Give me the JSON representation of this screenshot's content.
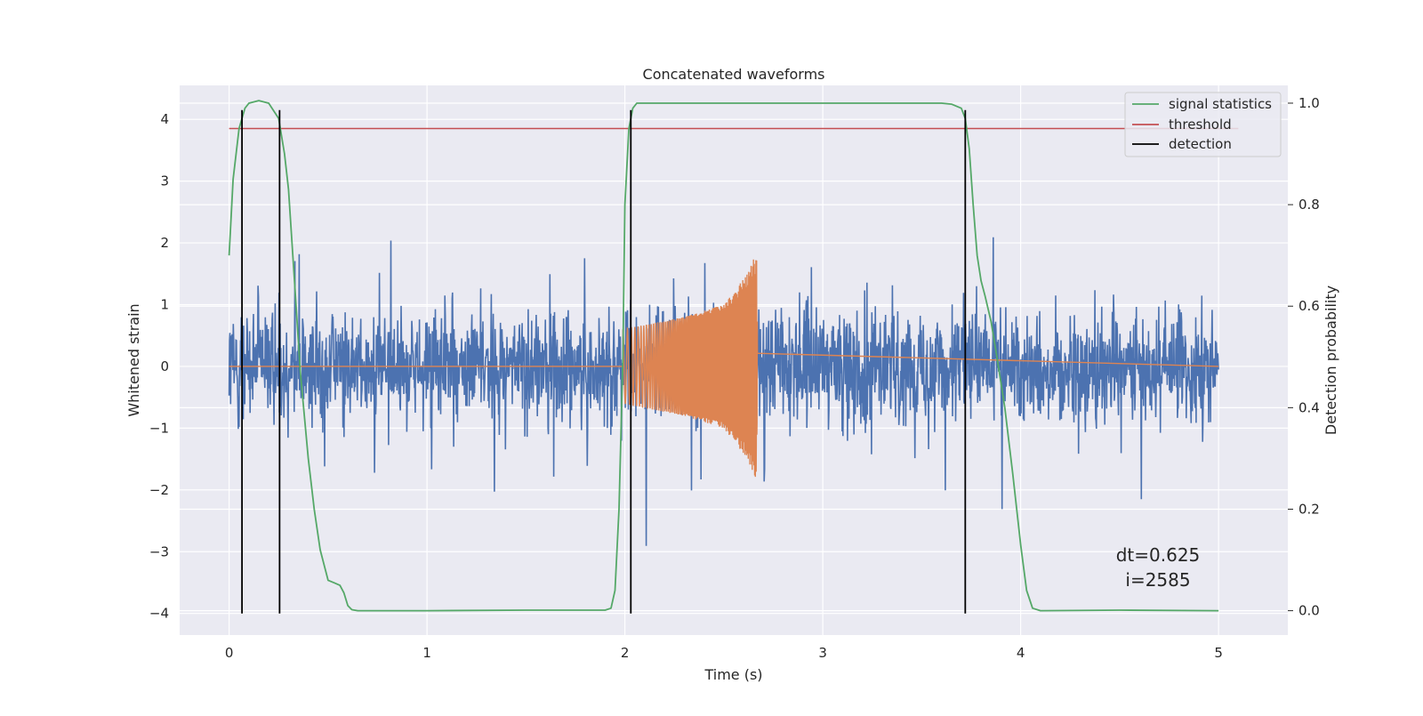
{
  "chart_data": {
    "type": "line",
    "title": "Concatenated waveforms",
    "xlabel": "Time (s)",
    "ylabel": "Whitened strain",
    "y2label": "Detection probability",
    "xlim": [
      -0.25,
      5.35
    ],
    "ylim": [
      -4.35,
      4.55
    ],
    "y2lim": [
      -0.048,
      1.035
    ],
    "x_ticks": [
      0,
      1,
      2,
      3,
      4,
      5
    ],
    "y_ticks": [
      -4,
      -3,
      -2,
      -1,
      0,
      1,
      2,
      3,
      4
    ],
    "y2_ticks": [
      0.0,
      0.2,
      0.4,
      0.6,
      0.8,
      1.0
    ],
    "x_tick_labels": [
      "0",
      "1",
      "2",
      "3",
      "4",
      "5"
    ],
    "y_tick_labels": [
      "−4",
      "−3",
      "−2",
      "−1",
      "0",
      "1",
      "2",
      "3",
      "4"
    ],
    "y2_tick_labels": [
      "0.0",
      "0.2",
      "0.4",
      "0.6",
      "0.8",
      "1.0"
    ],
    "grid": true,
    "legend_position": "top-right",
    "colors": {
      "background": "#eaeaf2",
      "grid": "#ffffff",
      "strain": "#4c72b0",
      "template": "#dd8452",
      "signal_statistics": "#55a868",
      "threshold": "#c44e52",
      "detection": "#000000"
    },
    "series": [
      {
        "name": "",
        "axis": "left",
        "kind": "noise",
        "x_range": [
          0,
          5
        ],
        "envelope": [
          [
            0.0,
            2.8
          ],
          [
            0.5,
            2.7
          ],
          [
            1.0,
            2.8
          ],
          [
            1.5,
            2.9
          ],
          [
            2.0,
            2.8
          ],
          [
            2.5,
            3.3
          ],
          [
            2.63,
            4.1
          ],
          [
            3.0,
            2.9
          ],
          [
            3.5,
            2.8
          ],
          [
            4.0,
            2.7
          ],
          [
            4.5,
            3.8
          ],
          [
            5.0,
            2.8
          ]
        ]
      },
      {
        "name": "",
        "axis": "left",
        "kind": "chirp",
        "x_range": [
          1.99,
          2.67
        ],
        "peak": [
          [
            1.99,
            0.6
          ],
          [
            2.3,
            0.8
          ],
          [
            2.5,
            1.0
          ],
          [
            2.62,
            1.5
          ],
          [
            2.665,
            1.85
          ],
          [
            2.672,
            0.0
          ]
        ]
      },
      {
        "name": "signal statistics",
        "axis": "right",
        "x": [
          0.0,
          0.02,
          0.05,
          0.08,
          0.1,
          0.15,
          0.2,
          0.25,
          0.28,
          0.3,
          0.33,
          0.36,
          0.4,
          0.43,
          0.46,
          0.5,
          0.53,
          0.56,
          0.58,
          0.6,
          0.62,
          0.65,
          1.0,
          1.5,
          1.9,
          1.93,
          1.95,
          1.97,
          1.99,
          2.0,
          2.02,
          2.04,
          2.06,
          2.1,
          2.2,
          3.5,
          3.6,
          3.65,
          3.7,
          3.72,
          3.74,
          3.76,
          3.78,
          3.8,
          3.82,
          3.85,
          3.88,
          3.92,
          3.96,
          4.0,
          4.03,
          4.06,
          4.1,
          4.5,
          5.0
        ],
        "y": [
          0.7,
          0.85,
          0.95,
          0.99,
          1.0,
          1.005,
          1.0,
          0.97,
          0.9,
          0.83,
          0.65,
          0.47,
          0.3,
          0.2,
          0.12,
          0.06,
          0.055,
          0.05,
          0.035,
          0.01,
          0.002,
          0.0,
          0.0,
          0.001,
          0.001,
          0.005,
          0.04,
          0.2,
          0.5,
          0.8,
          0.95,
          0.99,
          1.0,
          1.0,
          1.0,
          1.0,
          1.0,
          0.998,
          0.99,
          0.97,
          0.91,
          0.8,
          0.7,
          0.65,
          0.62,
          0.57,
          0.5,
          0.4,
          0.27,
          0.13,
          0.04,
          0.005,
          0.0,
          0.001,
          0.0
        ]
      },
      {
        "name": "threshold",
        "axis": "right",
        "x": [
          0.0,
          5.1
        ],
        "y": [
          0.95,
          0.95
        ]
      }
    ],
    "detections": {
      "name": "detection",
      "times": [
        0.065,
        0.255,
        2.03,
        3.72
      ],
      "y_range": [
        -4.0,
        4.15
      ]
    },
    "annotations": [
      "dt=0.625",
      "i=2585"
    ]
  }
}
